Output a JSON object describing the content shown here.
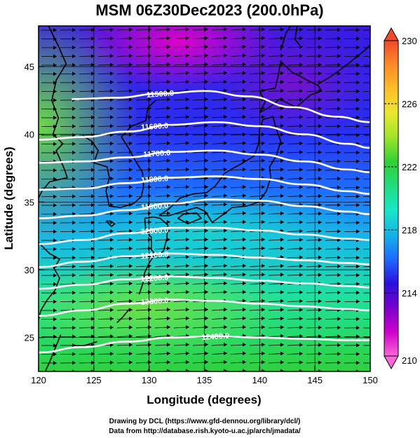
{
  "chart_data": {
    "type": "heatmap",
    "title": "MSM 06Z30Dec2023 (200.0hPa)",
    "xlabel": "Longitude (degrees)",
    "ylabel": "Latitude  (degrees)",
    "xlim": [
      120,
      150
    ],
    "ylim": [
      22.5,
      48
    ],
    "x_ticks": [
      120,
      125,
      130,
      135,
      140,
      145,
      150
    ],
    "y_ticks": [
      25,
      30,
      35,
      40,
      45
    ],
    "colorbar": {
      "min": 210,
      "max": 230,
      "ticks": [
        210,
        214,
        218,
        222,
        226,
        230
      ],
      "colors": [
        "#ff66d9",
        "#cc00cc",
        "#7a00cc",
        "#2a10e0",
        "#1e6bff",
        "#14b4e8",
        "#18e6c8",
        "#22dc80",
        "#30d035",
        "#9be52a",
        "#e8e830",
        "#ffbe28",
        "#ff8a28",
        "#f04a2a"
      ]
    },
    "contours": [
      {
        "value": 11500,
        "label": "11500.0",
        "points": [
          [
            123,
            42.6
          ],
          [
            127,
            42.7
          ],
          [
            131,
            43.0
          ],
          [
            135,
            43.2
          ],
          [
            139,
            42.8
          ],
          [
            143,
            42.0
          ],
          [
            147,
            41.3
          ],
          [
            150,
            40.9
          ]
        ]
      },
      {
        "value": 11600,
        "label": "11600.0",
        "points": [
          [
            120,
            39.6
          ],
          [
            124,
            39.8
          ],
          [
            128,
            40.2
          ],
          [
            132,
            40.7
          ],
          [
            136,
            40.9
          ],
          [
            140,
            40.6
          ],
          [
            144,
            40.0
          ],
          [
            148,
            39.3
          ],
          [
            150,
            39.0
          ]
        ]
      },
      {
        "value": 11700,
        "label": "11700.0",
        "points": [
          [
            120,
            37.9
          ],
          [
            124,
            38.0
          ],
          [
            128,
            38.3
          ],
          [
            132,
            38.7
          ],
          [
            136,
            38.8
          ],
          [
            140,
            38.5
          ],
          [
            144,
            38.0
          ],
          [
            148,
            37.4
          ],
          [
            150,
            37.2
          ]
        ]
      },
      {
        "value": 11800,
        "label": "11800.0",
        "points": [
          [
            120,
            35.9
          ],
          [
            124,
            36.0
          ],
          [
            128,
            36.4
          ],
          [
            132,
            36.8
          ],
          [
            136,
            36.9
          ],
          [
            140,
            36.7
          ],
          [
            144,
            36.3
          ],
          [
            148,
            35.8
          ],
          [
            150,
            35.6
          ]
        ]
      },
      {
        "value": 11900,
        "label": "11900.0",
        "points": [
          [
            120,
            33.8
          ],
          [
            124,
            34.0
          ],
          [
            128,
            34.4
          ],
          [
            132,
            34.9
          ],
          [
            136,
            35.2
          ],
          [
            140,
            35.1
          ],
          [
            144,
            34.7
          ],
          [
            148,
            34.3
          ],
          [
            150,
            34.1
          ]
        ]
      },
      {
        "value": 12000,
        "label": "12000.0",
        "points": [
          [
            120,
            31.9
          ],
          [
            124,
            32.2
          ],
          [
            128,
            32.7
          ],
          [
            132,
            33.1
          ],
          [
            136,
            33.1
          ],
          [
            140,
            32.9
          ],
          [
            144,
            32.6
          ],
          [
            148,
            32.3
          ],
          [
            150,
            32.2
          ]
        ]
      },
      {
        "value": 12100,
        "label": "12100.0",
        "points": [
          [
            120,
            30.2
          ],
          [
            124,
            30.6
          ],
          [
            128,
            31.0
          ],
          [
            132,
            31.2
          ],
          [
            136,
            31.1
          ],
          [
            140,
            30.9
          ],
          [
            144,
            30.7
          ],
          [
            148,
            30.5
          ],
          [
            150,
            30.4
          ]
        ]
      },
      {
        "value": 12200,
        "label": "12200.0",
        "points": [
          [
            120,
            28.6
          ],
          [
            124,
            28.9
          ],
          [
            128,
            29.3
          ],
          [
            132,
            29.5
          ],
          [
            136,
            29.4
          ],
          [
            140,
            29.2
          ],
          [
            144,
            29.0
          ],
          [
            148,
            28.8
          ],
          [
            150,
            28.7
          ]
        ]
      },
      {
        "value": 12300,
        "label": "12300.0",
        "points": [
          [
            120,
            26.6
          ],
          [
            124,
            27.0
          ],
          [
            128,
            27.5
          ],
          [
            132,
            27.8
          ],
          [
            136,
            27.7
          ],
          [
            140,
            27.5
          ],
          [
            144,
            27.3
          ],
          [
            148,
            27.1
          ],
          [
            150,
            27.0
          ]
        ]
      },
      {
        "value": 12400,
        "label": "12400.0",
        "points": [
          [
            120,
            23.9
          ],
          [
            124,
            24.3
          ],
          [
            128,
            24.7
          ],
          [
            132,
            25.0
          ],
          [
            136,
            25.1
          ],
          [
            140,
            25.0
          ],
          [
            144,
            24.9
          ],
          [
            148,
            24.8
          ],
          [
            150,
            24.8
          ]
        ]
      }
    ],
    "contour_labels": [
      {
        "text": "11500.0",
        "at": [
          131.0,
          43.0
        ]
      },
      {
        "text": "11600.0",
        "at": [
          130.5,
          40.6
        ]
      },
      {
        "text": "11700.0",
        "at": [
          130.7,
          38.6
        ]
      },
      {
        "text": "11800.0",
        "at": [
          130.5,
          36.7
        ]
      },
      {
        "text": "11900.0",
        "at": [
          130.5,
          34.7
        ]
      },
      {
        "text": "12000.0",
        "at": [
          130.5,
          32.9
        ]
      },
      {
        "text": "12100.0",
        "at": [
          130.5,
          31.1
        ]
      },
      {
        "text": "12200.0",
        "at": [
          130.5,
          29.4
        ]
      },
      {
        "text": "12300.0",
        "at": [
          130.5,
          27.7
        ]
      },
      {
        "text": "12400.0",
        "at": [
          136.0,
          25.1
        ]
      }
    ]
  },
  "credits": {
    "line1": "Drawing by DCL (https://www.gfd-dennou.org/library/dcl/)",
    "line2": "Data from http://database.rish.kyoto-u.ac.jp/arch/jmadata/"
  }
}
